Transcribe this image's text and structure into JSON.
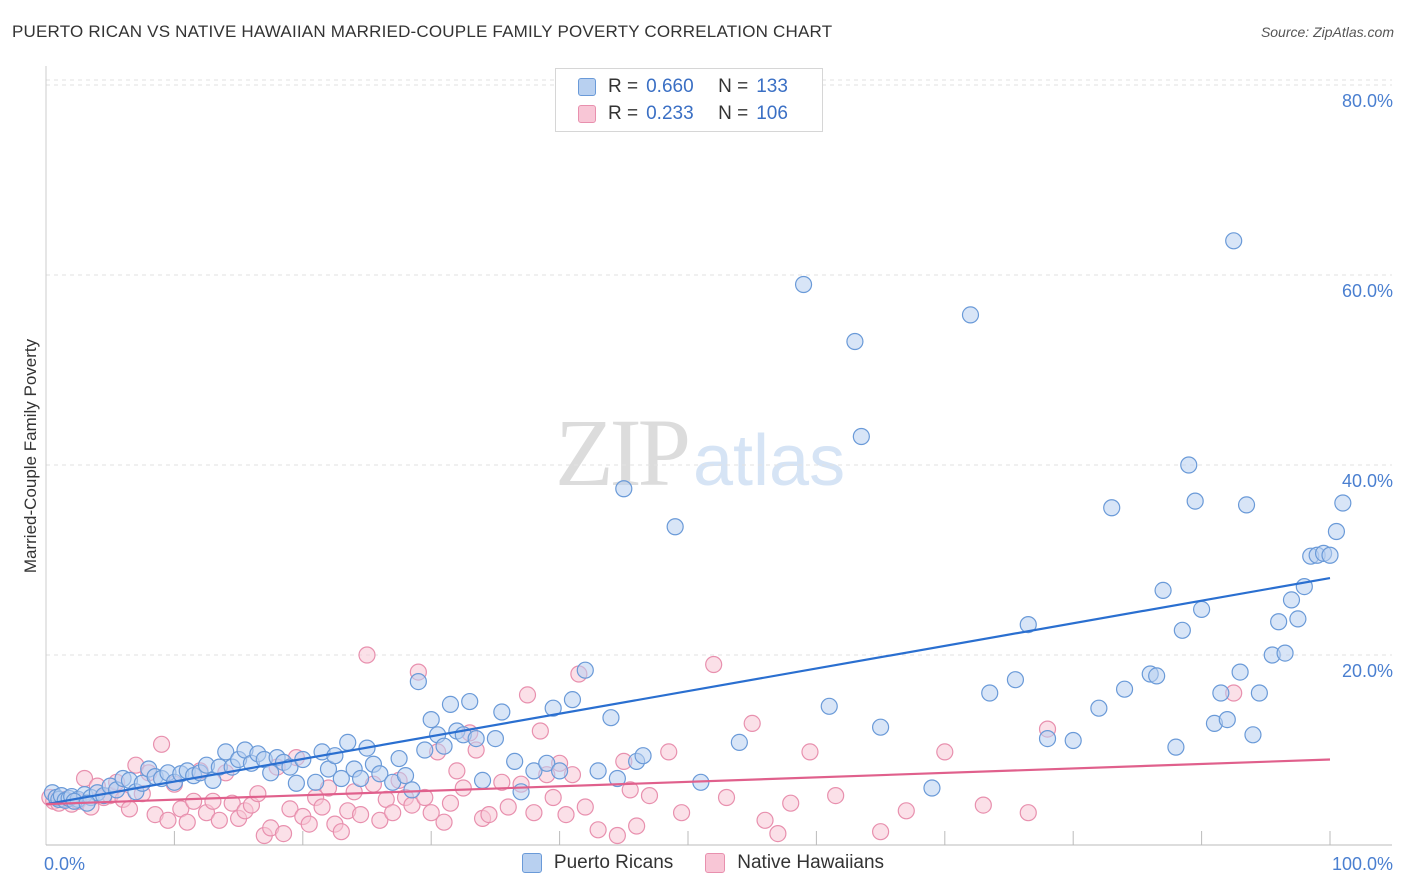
{
  "title": "PUERTO RICAN VS NATIVE HAWAIIAN MARRIED-COUPLE FAMILY POVERTY CORRELATION CHART",
  "source": "Source: ZipAtlas.com",
  "watermark": {
    "zip": "ZIP",
    "atlas": "atlas"
  },
  "legend": {
    "items": [
      {
        "r_label": "R =",
        "r_value": "0.660",
        "n_label": "N =",
        "n_value": "133"
      },
      {
        "r_label": "R =",
        "r_value": "0.233",
        "n_label": "N =",
        "n_value": "106"
      }
    ]
  },
  "bottom_legend": [
    "Puerto Ricans",
    "Native Hawaiians"
  ],
  "colors": {
    "blue_fill": "#b8d0f0",
    "blue_stroke": "#6a9ad8",
    "blue_line": "#2a6fd0",
    "pink_fill": "#f8c6d6",
    "pink_stroke": "#e890ae",
    "pink_line": "#e0608c",
    "axis_text": "#4a7fd0",
    "grid": "#e2e2e2"
  },
  "chart_data": {
    "type": "scatter",
    "title": "PUERTO RICAN VS NATIVE HAWAIIAN MARRIED-COUPLE FAMILY POVERTY CORRELATION CHART",
    "xlabel": "",
    "ylabel": "Married-Couple Family Poverty",
    "xlim": [
      0,
      100
    ],
    "ylim": [
      0,
      82
    ],
    "x_tick_labels": [
      {
        "value": 0,
        "label": "0.0%"
      },
      {
        "value": 100,
        "label": "100.0%"
      }
    ],
    "y_tick_labels": [
      {
        "value": 20,
        "label": "20.0%"
      },
      {
        "value": 40,
        "label": "40.0%"
      },
      {
        "value": 60,
        "label": "60.0%"
      },
      {
        "value": 80,
        "label": "80.0%"
      }
    ],
    "series": [
      {
        "name": "Puerto Ricans",
        "r": 0.66,
        "n": 133,
        "trend": {
          "x": [
            0,
            100
          ],
          "y": [
            4.3,
            28.1
          ]
        },
        "points": [
          [
            0.5,
            5.5
          ],
          [
            0.8,
            5.0
          ],
          [
            1.0,
            4.8
          ],
          [
            1.2,
            5.2
          ],
          [
            1.5,
            4.7
          ],
          [
            1.8,
            4.9
          ],
          [
            2.0,
            5.1
          ],
          [
            2.5,
            4.8
          ],
          [
            3.0,
            5.3
          ],
          [
            3.5,
            5.0
          ],
          [
            4.0,
            5.5
          ],
          [
            4.5,
            5.2
          ],
          [
            5.0,
            6.2
          ],
          [
            5.5,
            5.8
          ],
          [
            6.0,
            7.0
          ],
          [
            6.5,
            6.8
          ],
          [
            7.0,
            5.6
          ],
          [
            7.5,
            6.5
          ],
          [
            8.0,
            8.0
          ],
          [
            8.5,
            7.2
          ],
          [
            9.0,
            7.0
          ],
          [
            9.5,
            7.6
          ],
          [
            10.0,
            6.6
          ],
          [
            10.5,
            7.5
          ],
          [
            11.0,
            7.8
          ],
          [
            11.5,
            7.3
          ],
          [
            12.0,
            7.6
          ],
          [
            12.5,
            8.4
          ],
          [
            13.0,
            6.8
          ],
          [
            13.5,
            8.2
          ],
          [
            14.0,
            9.8
          ],
          [
            14.5,
            8.2
          ],
          [
            15.0,
            9.0
          ],
          [
            15.5,
            10.0
          ],
          [
            16.0,
            8.6
          ],
          [
            16.5,
            9.6
          ],
          [
            17.0,
            9.0
          ],
          [
            17.5,
            7.6
          ],
          [
            18.0,
            9.2
          ],
          [
            18.5,
            8.7
          ],
          [
            19.0,
            8.2
          ],
          [
            19.5,
            6.5
          ],
          [
            20.0,
            9.0
          ],
          [
            21.0,
            6.6
          ],
          [
            21.5,
            9.8
          ],
          [
            22.0,
            8.0
          ],
          [
            22.5,
            9.4
          ],
          [
            23.0,
            7.0
          ],
          [
            23.5,
            10.8
          ],
          [
            24.0,
            8.0
          ],
          [
            24.5,
            7.0
          ],
          [
            25.0,
            10.2
          ],
          [
            25.5,
            8.5
          ],
          [
            26.0,
            7.5
          ],
          [
            27.0,
            6.6
          ],
          [
            27.5,
            9.1
          ],
          [
            28.0,
            7.3
          ],
          [
            28.5,
            5.8
          ],
          [
            29.0,
            17.2
          ],
          [
            29.5,
            10.0
          ],
          [
            30.0,
            13.2
          ],
          [
            30.5,
            11.6
          ],
          [
            31.0,
            10.4
          ],
          [
            31.5,
            14.8
          ],
          [
            32.0,
            12.0
          ],
          [
            32.5,
            11.6
          ],
          [
            33.0,
            15.1
          ],
          [
            33.5,
            11.2
          ],
          [
            34.0,
            6.8
          ],
          [
            35.0,
            11.2
          ],
          [
            35.5,
            14.0
          ],
          [
            36.5,
            8.8
          ],
          [
            37.0,
            5.6
          ],
          [
            38.0,
            7.8
          ],
          [
            39.0,
            8.6
          ],
          [
            39.5,
            14.4
          ],
          [
            40.0,
            7.8
          ],
          [
            41.0,
            15.3
          ],
          [
            42.0,
            18.4
          ],
          [
            43.0,
            7.8
          ],
          [
            44.0,
            13.4
          ],
          [
            44.5,
            7.0
          ],
          [
            45.0,
            37.5
          ],
          [
            46.0,
            8.8
          ],
          [
            46.5,
            9.4
          ],
          [
            49.0,
            33.5
          ],
          [
            51.0,
            6.6
          ],
          [
            54.0,
            10.8
          ],
          [
            59.0,
            59.0
          ],
          [
            61.0,
            14.6
          ],
          [
            63.0,
            53.0
          ],
          [
            63.5,
            43.0
          ],
          [
            65.0,
            12.4
          ],
          [
            69.0,
            6.0
          ],
          [
            72.0,
            55.8
          ],
          [
            73.5,
            16.0
          ],
          [
            75.5,
            17.4
          ],
          [
            76.5,
            23.2
          ],
          [
            78.0,
            11.2
          ],
          [
            80.0,
            11.0
          ],
          [
            82.0,
            14.4
          ],
          [
            83.0,
            35.5
          ],
          [
            84.0,
            16.4
          ],
          [
            86.0,
            18.0
          ],
          [
            86.5,
            17.8
          ],
          [
            87.0,
            26.8
          ],
          [
            88.0,
            10.3
          ],
          [
            88.5,
            22.6
          ],
          [
            89.0,
            40.0
          ],
          [
            89.5,
            36.2
          ],
          [
            90.0,
            24.8
          ],
          [
            91.0,
            12.8
          ],
          [
            91.5,
            16.0
          ],
          [
            92.0,
            13.2
          ],
          [
            92.5,
            63.6
          ],
          [
            93.0,
            18.2
          ],
          [
            93.5,
            35.8
          ],
          [
            94.0,
            11.6
          ],
          [
            94.5,
            16.0
          ],
          [
            95.5,
            20.0
          ],
          [
            96.0,
            23.5
          ],
          [
            96.5,
            20.2
          ],
          [
            97.0,
            25.8
          ],
          [
            97.5,
            23.8
          ],
          [
            98.0,
            27.2
          ],
          [
            98.5,
            30.4
          ],
          [
            99.0,
            30.5
          ],
          [
            99.5,
            30.7
          ],
          [
            100.0,
            30.5
          ],
          [
            100.5,
            33.0
          ],
          [
            101.0,
            36.0
          ],
          [
            2.2,
            4.6
          ],
          [
            3.2,
            4.4
          ]
        ]
      },
      {
        "name": "Native Hawaiians",
        "r": 0.233,
        "n": 106,
        "trend": {
          "x": [
            0,
            100
          ],
          "y": [
            4.3,
            9.0
          ]
        },
        "points": [
          [
            0.3,
            5.0
          ],
          [
            0.6,
            4.6
          ],
          [
            1.0,
            4.4
          ],
          [
            1.5,
            4.8
          ],
          [
            2.0,
            4.3
          ],
          [
            2.5,
            4.6
          ],
          [
            3.0,
            7.0
          ],
          [
            3.5,
            4.0
          ],
          [
            4.0,
            6.2
          ],
          [
            4.5,
            5.0
          ],
          [
            5.0,
            5.2
          ],
          [
            5.5,
            6.6
          ],
          [
            6.0,
            4.8
          ],
          [
            6.5,
            3.8
          ],
          [
            7.0,
            8.4
          ],
          [
            7.5,
            5.4
          ],
          [
            8.0,
            7.6
          ],
          [
            8.5,
            3.2
          ],
          [
            9.0,
            10.6
          ],
          [
            9.5,
            2.6
          ],
          [
            10.0,
            6.4
          ],
          [
            10.5,
            3.8
          ],
          [
            11.0,
            2.4
          ],
          [
            11.5,
            4.6
          ],
          [
            12.0,
            7.8
          ],
          [
            12.5,
            3.4
          ],
          [
            13.0,
            4.6
          ],
          [
            13.5,
            2.6
          ],
          [
            14.0,
            7.6
          ],
          [
            14.5,
            4.4
          ],
          [
            15.0,
            2.8
          ],
          [
            15.5,
            3.6
          ],
          [
            16.0,
            4.2
          ],
          [
            16.5,
            5.4
          ],
          [
            17.0,
            1.0
          ],
          [
            17.5,
            1.8
          ],
          [
            18.0,
            8.2
          ],
          [
            18.5,
            1.2
          ],
          [
            19.0,
            3.8
          ],
          [
            19.5,
            9.2
          ],
          [
            20.0,
            3.0
          ],
          [
            20.5,
            2.2
          ],
          [
            21.0,
            5.0
          ],
          [
            21.5,
            4.0
          ],
          [
            22.0,
            6.0
          ],
          [
            22.5,
            2.2
          ],
          [
            23.0,
            1.4
          ],
          [
            23.5,
            3.6
          ],
          [
            24.0,
            5.6
          ],
          [
            24.5,
            3.2
          ],
          [
            25.0,
            20.0
          ],
          [
            25.5,
            6.4
          ],
          [
            26.0,
            2.6
          ],
          [
            26.5,
            4.8
          ],
          [
            27.0,
            3.4
          ],
          [
            27.5,
            6.8
          ],
          [
            28.0,
            5.0
          ],
          [
            28.5,
            4.2
          ],
          [
            29.0,
            18.2
          ],
          [
            29.5,
            5.0
          ],
          [
            30.0,
            3.4
          ],
          [
            30.5,
            9.8
          ],
          [
            31.0,
            2.4
          ],
          [
            31.5,
            4.4
          ],
          [
            32.0,
            7.8
          ],
          [
            32.5,
            6.0
          ],
          [
            33.0,
            11.8
          ],
          [
            33.5,
            10.0
          ],
          [
            34.0,
            2.8
          ],
          [
            34.5,
            3.2
          ],
          [
            35.5,
            6.6
          ],
          [
            36.0,
            4.0
          ],
          [
            37.0,
            6.4
          ],
          [
            37.5,
            15.8
          ],
          [
            38.0,
            3.4
          ],
          [
            38.5,
            12.0
          ],
          [
            39.0,
            7.4
          ],
          [
            39.5,
            5.0
          ],
          [
            40.0,
            8.6
          ],
          [
            40.5,
            3.2
          ],
          [
            41.0,
            7.4
          ],
          [
            41.5,
            18.0
          ],
          [
            42.0,
            4.0
          ],
          [
            43.0,
            1.6
          ],
          [
            44.5,
            1.0
          ],
          [
            45.0,
            8.8
          ],
          [
            45.5,
            5.8
          ],
          [
            46.0,
            2.0
          ],
          [
            47.0,
            5.2
          ],
          [
            48.5,
            9.8
          ],
          [
            49.5,
            3.4
          ],
          [
            52.0,
            19.0
          ],
          [
            53.0,
            5.0
          ],
          [
            55.0,
            12.8
          ],
          [
            56.0,
            2.6
          ],
          [
            57.0,
            1.2
          ],
          [
            58.0,
            4.4
          ],
          [
            59.5,
            9.8
          ],
          [
            61.5,
            5.2
          ],
          [
            65.0,
            1.4
          ],
          [
            67.0,
            3.6
          ],
          [
            70.0,
            9.8
          ],
          [
            73.0,
            4.2
          ],
          [
            76.5,
            3.4
          ],
          [
            78.0,
            12.2
          ],
          [
            92.5,
            16.0
          ]
        ]
      }
    ]
  }
}
